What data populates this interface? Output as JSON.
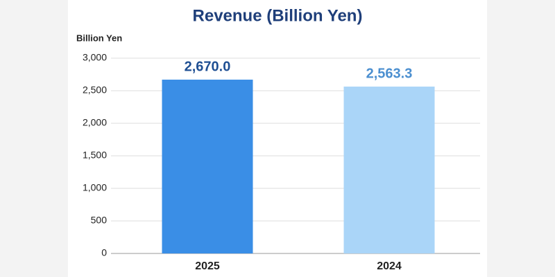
{
  "chart_data": {
    "type": "bar",
    "title": "Revenue (Billion Yen)",
    "y_label": "Billion Yen",
    "categories": [
      "2025",
      "2024"
    ],
    "values": [
      2670.0,
      2563.3
    ],
    "value_labels": [
      "2,670.0",
      "2,563.3"
    ],
    "colors": [
      "#3a8ee6",
      "#aad5f8"
    ],
    "label_colors": [
      "#1f4f93",
      "#4b8fd0"
    ],
    "ylim": [
      0,
      3000
    ],
    "yticks": [
      0,
      500,
      {
        "value": 1000,
        "label": "1,000"
      },
      {
        "value": 1500,
        "label": "1,500"
      },
      {
        "value": 2000,
        "label": "2,000"
      },
      {
        "value": 2500,
        "label": "2,500"
      },
      {
        "value": 3000,
        "label": "3,000"
      }
    ],
    "grid": true
  }
}
